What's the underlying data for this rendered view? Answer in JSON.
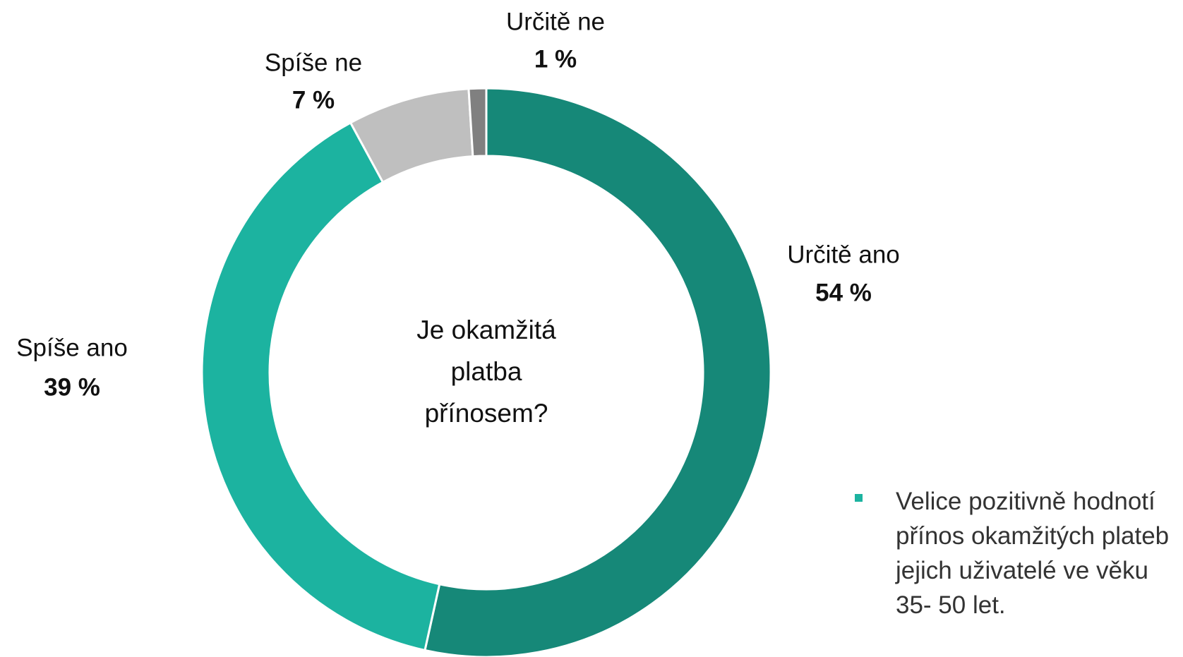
{
  "chart_data": {
    "type": "donut",
    "center_text": "Je okamžitá platba přínosem?",
    "categories": [
      "Určitě ano",
      "Spíše ano",
      "Spíše ne",
      "Určitě ne"
    ],
    "values": [
      54,
      39,
      7,
      1
    ],
    "value_labels": [
      "54 %",
      "39 %",
      "7 %",
      "1 %"
    ],
    "colors": [
      "#168878",
      "#1cb3a0",
      "#bfbfbf",
      "#808080"
    ],
    "note": "Velice pozitivně hodnotí přínos okamžitých plateb jejich uživatelé ve věku 35- 50 let.",
    "note_color": "#1cb3a0"
  }
}
